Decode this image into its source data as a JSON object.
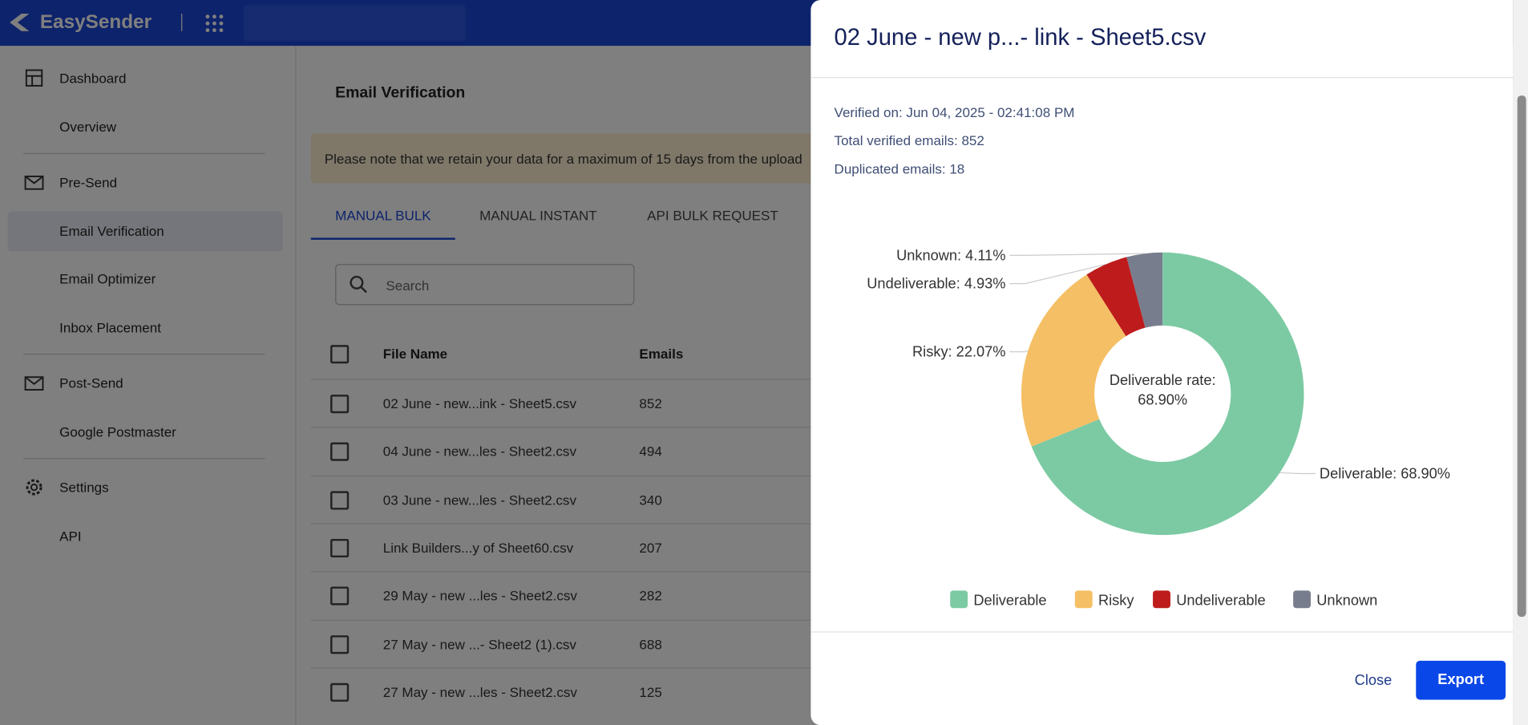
{
  "header": {
    "brand": "EasySender"
  },
  "sidebar": {
    "groups": [
      {
        "title": "Dashboard",
        "items": [
          "Overview"
        ]
      },
      {
        "title": "Pre-Send",
        "items": [
          "Email Verification",
          "Email Optimizer",
          "Inbox Placement"
        ]
      },
      {
        "title": "Post-Send",
        "items": [
          "Google Postmaster"
        ]
      },
      {
        "title": "Settings",
        "items": [
          "API"
        ]
      }
    ]
  },
  "main": {
    "heading": "Email Verification",
    "notice": "Please note that we retain your data for a maximum of 15 days from the upload",
    "tabs": [
      "MANUAL BULK",
      "MANUAL INSTANT",
      "API BULK REQUEST"
    ],
    "search_placeholder": "Search",
    "table": {
      "columns": [
        "File Name",
        "Emails"
      ],
      "rows": [
        [
          "02 June - new...ink - Sheet5.csv",
          852
        ],
        [
          "04 June - new...les - Sheet2.csv",
          494
        ],
        [
          "03 June - new...les - Sheet2.csv",
          340
        ],
        [
          "Link Builders...y of Sheet60.csv",
          207
        ],
        [
          "29 May - new ...les - Sheet2.csv",
          282
        ],
        [
          "27 May - new ...- Sheet2 (1).csv",
          688
        ],
        [
          "27 May - new ...les - Sheet2.csv",
          125
        ]
      ]
    }
  },
  "modal": {
    "title": "02 June - new p...- link - Sheet5.csv",
    "info": [
      "Verified on: Jun 04, 2025 - 02:41:08 PM",
      "Total verified emails: 852",
      "Duplicated emails: 18"
    ],
    "center_title": "Deliverable rate:",
    "center_value": "68.90%",
    "buttons": {
      "close": "Close",
      "export": "Export"
    }
  },
  "chart_data": {
    "type": "donut",
    "categories": [
      "Deliverable",
      "Risky",
      "Undeliverable",
      "Unknown"
    ],
    "values": [
      68.9,
      22.07,
      4.93,
      4.11
    ],
    "value_labels": [
      "Deliverable: 68.90%",
      "Risky: 22.07%",
      "Undeliverable: 4.93%",
      "Unknown: 4.11%"
    ],
    "colors": [
      "#7ccaa3",
      "#f5bf65",
      "#be1c1c",
      "#787d8e"
    ],
    "legend": "bottom"
  }
}
